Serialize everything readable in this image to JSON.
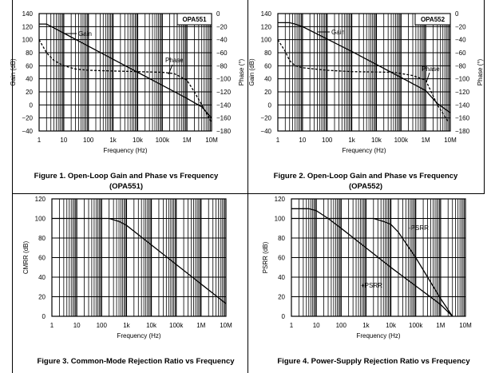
{
  "chart_data": [
    {
      "type": "line",
      "title": "Figure 1. Open-Loop Gain and Phase vs Frequency",
      "subtitle": "(OPA551)",
      "xlabel": "Frequency (Hz)",
      "ylabel": "Gain (dB)",
      "ylabel_right": "Phase (°)",
      "xscale": "log",
      "xlim": [
        1,
        10000000
      ],
      "ylim": [
        -40,
        140
      ],
      "ylim_right": [
        -180,
        0
      ],
      "x_ticks": [
        "1",
        "10",
        "100",
        "1k",
        "10k",
        "100k",
        "1M",
        "10M"
      ],
      "y_ticks": [
        "-40",
        "-20",
        "0",
        "20",
        "40",
        "60",
        "80",
        "100",
        "120",
        "140"
      ],
      "y_ticks_right": [
        "-180",
        "-160",
        "-140",
        "-120",
        "-100",
        "-80",
        "-60",
        "-40",
        "-20",
        "0"
      ],
      "grid": true,
      "legend_box": "OPA551",
      "series": [
        {
          "name": "Gain",
          "axis": "left",
          "style": "solid",
          "x": [
            1,
            2,
            10,
            100,
            1000,
            10000,
            100000,
            1000000,
            4000000,
            10000000
          ],
          "y": [
            124,
            124,
            110,
            90,
            70,
            50,
            30,
            10,
            -3,
            -20
          ]
        },
        {
          "name": "Phase",
          "axis": "right",
          "style": "dashed",
          "x": [
            1,
            2,
            4,
            10,
            30,
            100,
            1000,
            10000,
            100000,
            300000,
            1000000,
            2000000,
            4000000,
            10000000
          ],
          "y": [
            -40,
            -60,
            -72,
            -80,
            -85,
            -87,
            -88,
            -89,
            -90,
            -92,
            -102,
            -120,
            -140,
            -167
          ]
        }
      ]
    },
    {
      "type": "line",
      "title": "Figure 2. Open-Loop Gain and Phase vs Frequency",
      "subtitle": "(OPA552)",
      "xlabel": "Frequency (Hz)",
      "ylabel": "Gain (dB)",
      "ylabel_right": "Phase (°)",
      "xscale": "log",
      "xlim": [
        1,
        10000000
      ],
      "ylim": [
        -40,
        140
      ],
      "ylim_right": [
        -180,
        0
      ],
      "x_ticks": [
        "1",
        "10",
        "100",
        "1k",
        "10k",
        "100k",
        "1M",
        "10M"
      ],
      "y_ticks": [
        "-40",
        "-20",
        "0",
        "20",
        "40",
        "60",
        "80",
        "100",
        "120",
        "140"
      ],
      "y_ticks_right": [
        "-180",
        "-160",
        "-140",
        "-120",
        "-100",
        "-80",
        "-60",
        "-40",
        "-20",
        "0"
      ],
      "grid": true,
      "legend_box": "OPA552",
      "series": [
        {
          "name": "Gain",
          "axis": "left",
          "style": "solid",
          "x": [
            1,
            3,
            5,
            10,
            100,
            1000,
            10000,
            100000,
            1000000,
            3000000,
            10000000
          ],
          "y": [
            126,
            126,
            124,
            120,
            101,
            82,
            62,
            42,
            22,
            2,
            -12
          ]
        },
        {
          "name": "Phase",
          "axis": "right",
          "style": "dashed",
          "x": [
            1,
            2,
            3,
            5,
            10,
            100,
            1000,
            50000,
            300000,
            1000000,
            3000000,
            8000000
          ],
          "y": [
            -40,
            -58,
            -72,
            -80,
            -83,
            -87,
            -89,
            -90,
            -95,
            -102,
            -140,
            -165
          ]
        }
      ]
    },
    {
      "type": "line",
      "title": "Figure 3. Common-Mode Rejection Ratio vs Frequency",
      "xlabel": "Frequency (Hz)",
      "ylabel": "CMRR (dB)",
      "xscale": "log",
      "xlim": [
        1,
        10000000
      ],
      "ylim": [
        0,
        120
      ],
      "x_ticks": [
        "1",
        "10",
        "100",
        "1k",
        "10k",
        "100k",
        "1M",
        "10M"
      ],
      "y_ticks": [
        "0",
        "20",
        "40",
        "60",
        "80",
        "100",
        "120"
      ],
      "grid": true,
      "series": [
        {
          "name": "CMRR",
          "axis": "left",
          "style": "solid",
          "x": [
            1,
            200,
            500,
            1000,
            10000,
            100000,
            1000000,
            10000000
          ],
          "y": [
            100,
            100,
            97,
            93,
            73,
            53,
            33,
            13
          ]
        }
      ]
    },
    {
      "type": "line",
      "title": "Figure 4. Power-Supply Rejection Ratio vs Frequency",
      "xlabel": "Frequency (Hz)",
      "ylabel": "PSRR (dB)",
      "xscale": "log",
      "xlim": [
        1,
        10000000
      ],
      "ylim": [
        0,
        120
      ],
      "x_ticks": [
        "1",
        "10",
        "100",
        "1k",
        "10k",
        "100k",
        "1M",
        "10M"
      ],
      "y_ticks": [
        "0",
        "20",
        "40",
        "60",
        "80",
        "100",
        "120"
      ],
      "grid": true,
      "series": [
        {
          "name": "-PSRR",
          "axis": "left",
          "style": "solid",
          "x": [
            1,
            2000,
            5000,
            10000,
            20000,
            100000,
            1000000,
            3000000
          ],
          "y": [
            100,
            100,
            97,
            94,
            86,
            60,
            18,
            0
          ]
        },
        {
          "name": "+PSRR",
          "axis": "left",
          "style": "solid",
          "x": [
            1,
            5,
            10,
            30,
            100,
            1000,
            10000,
            100000,
            1000000,
            3000000
          ],
          "y": [
            110,
            110,
            108,
            100,
            90,
            70,
            50,
            31,
            12,
            0
          ]
        }
      ]
    }
  ]
}
